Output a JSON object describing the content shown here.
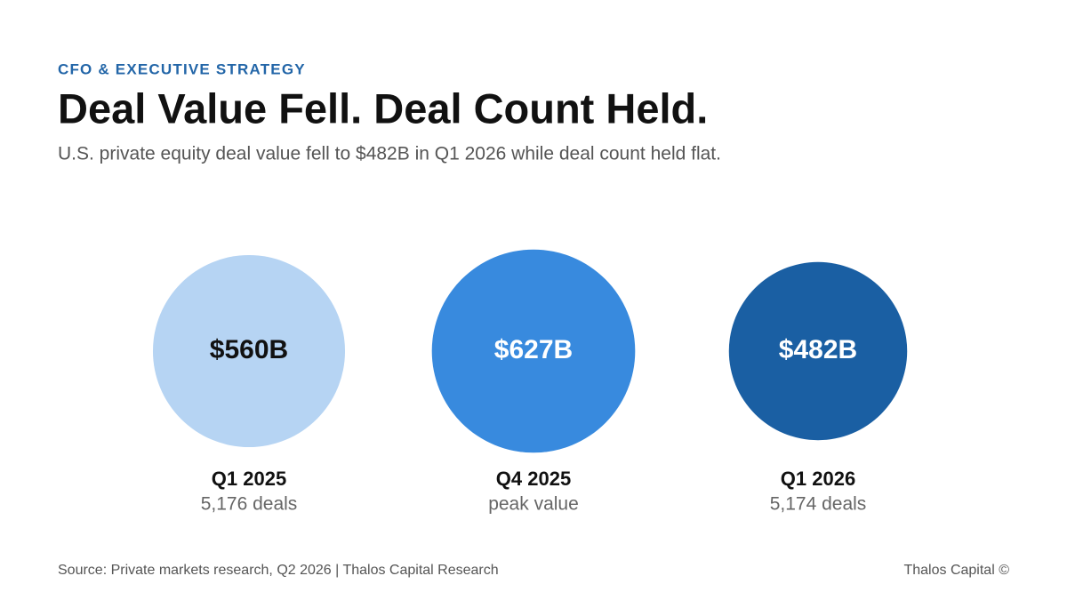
{
  "chart_data": {
    "type": "bubble",
    "kicker": "CFO & EXECUTIVE STRATEGY",
    "title": "Deal Value Fell. Deal Count Held.",
    "subtitle": "U.S. private equity deal value fell to $482B in Q1 2026 while deal count held flat.",
    "categories": [
      "Q1 2025",
      "Q4 2025",
      "Q1 2026"
    ],
    "values": [
      560,
      627,
      482
    ],
    "value_labels": [
      "$560B",
      "$627B",
      "$482B"
    ],
    "notes": [
      "5,176 deals",
      "peak value",
      "5,174 deals"
    ],
    "colors": [
      "#b6d4f3",
      "#388ade",
      "#1a5fa3"
    ],
    "source": "Source: Private markets research, Q2 2026 | Thalos Capital Research",
    "credit": "Thalos Capital ©"
  }
}
